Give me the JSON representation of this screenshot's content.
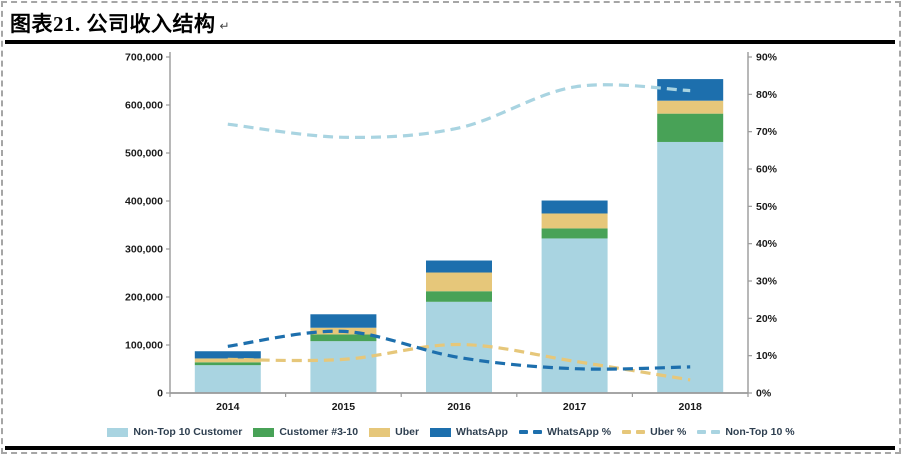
{
  "figure": {
    "title": "图表21. 公司收入结构",
    "return_mark": "↵"
  },
  "chart_data": {
    "type": "combo: stacked-bar + line",
    "categories": [
      "2014",
      "2015",
      "2016",
      "2017",
      "2018"
    ],
    "bar_series": [
      {
        "name": "Non-Top 10 Customer",
        "color": "#a9d4e1",
        "axis": "left",
        "values": [
          58000,
          108000,
          190000,
          322000,
          523000
        ]
      },
      {
        "name": "Customer #3-10",
        "color": "#48a257",
        "axis": "left",
        "values": [
          6000,
          14000,
          22000,
          21000,
          59000
        ]
      },
      {
        "name": "Uber",
        "color": "#e6c77a",
        "axis": "left",
        "values": [
          8000,
          14000,
          39000,
          31000,
          27000
        ]
      },
      {
        "name": "WhatsApp",
        "color": "#1d6fad",
        "axis": "left",
        "values": [
          15000,
          28000,
          25000,
          27000,
          45000
        ]
      }
    ],
    "line_series": [
      {
        "name": "Non-Top 10 %",
        "color": "#a9d4e1",
        "axis": "right",
        "style": "dashed",
        "values": [
          72,
          68.5,
          71,
          82,
          81
        ]
      },
      {
        "name": "Uber %",
        "color": "#e6c77a",
        "axis": "right",
        "style": "dashed",
        "values": [
          9,
          9,
          13,
          8.5,
          3.5
        ]
      },
      {
        "name": "WhatsApp %",
        "color": "#1d6fad",
        "axis": "right",
        "style": "dashed",
        "values": [
          12.5,
          16.5,
          9.5,
          6.5,
          7
        ]
      }
    ],
    "legend_order": [
      "Non-Top 10 Customer",
      "Customer #3-10",
      "Uber",
      "WhatsApp",
      "WhatsApp %",
      "Uber %",
      "Non-Top 10 %"
    ],
    "left_axis": {
      "max": 700000,
      "min": 0,
      "tick_labels": [
        "0",
        "100,000",
        "200,000",
        "300,000",
        "400,000",
        "500,000",
        "600,000",
        "700,000"
      ]
    },
    "right_axis": {
      "max": 90,
      "min": 0,
      "tick_labels": [
        "0%",
        "10%",
        "20%",
        "30%",
        "40%",
        "50%",
        "60%",
        "70%",
        "80%",
        "90%"
      ]
    },
    "grid": false,
    "legend_position": "bottom"
  }
}
